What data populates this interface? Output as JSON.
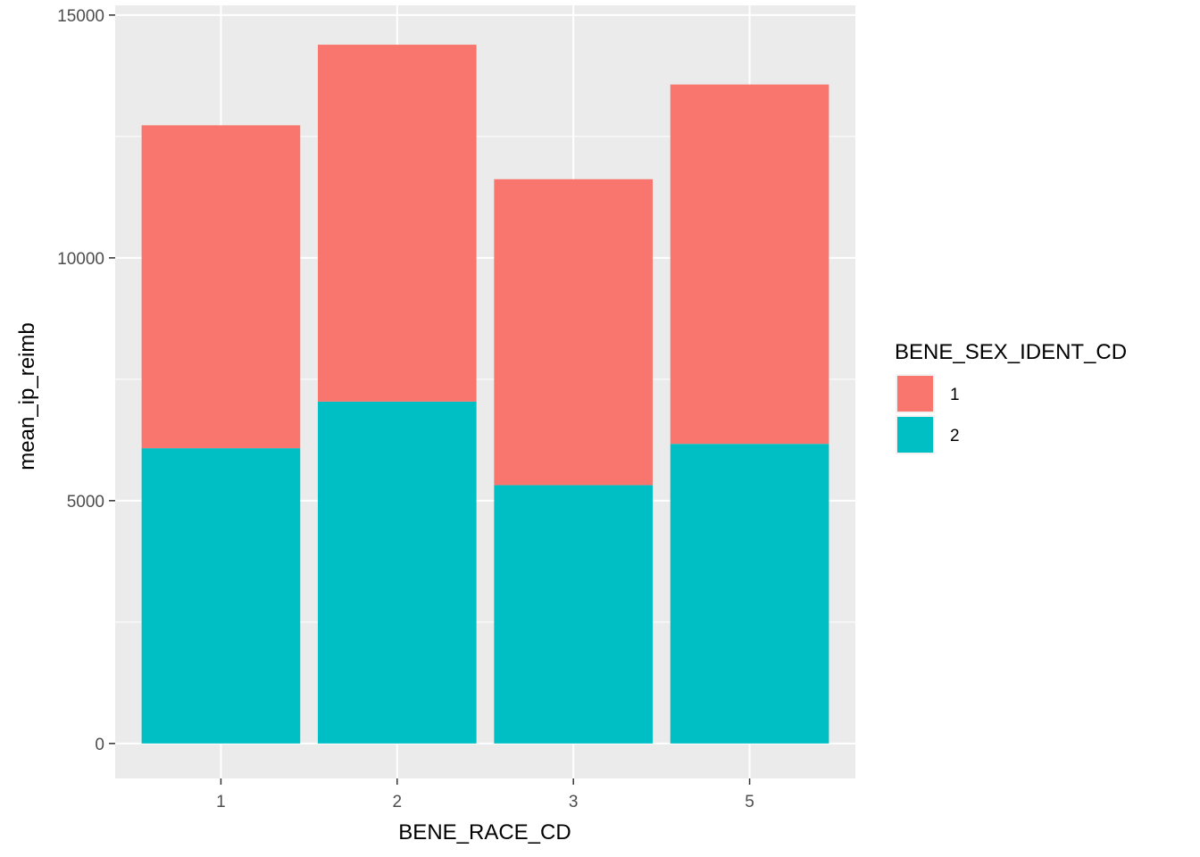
{
  "chart_data": {
    "type": "bar",
    "stacked": true,
    "categories": [
      "1",
      "2",
      "3",
      "5"
    ],
    "series": [
      {
        "name": "1",
        "color": "#F8766D",
        "values": [
          6650,
          7350,
          6300,
          7400
        ]
      },
      {
        "name": "2",
        "color": "#00BFC4",
        "values": [
          6080,
          7040,
          5320,
          6170
        ]
      }
    ],
    "xlabel": "BENE_RACE_CD",
    "ylabel": "mean_ip_reimb",
    "ylim": [
      -720,
      15200
    ],
    "yticks": [
      0,
      5000,
      10000,
      15000
    ],
    "ytick_labels": [
      "0",
      "5000",
      "10000",
      "15000"
    ],
    "legend": {
      "title": "BENE_SEX_IDENT_CD",
      "position": "right"
    },
    "grid": true,
    "panel_background": "#EBEBEB"
  }
}
